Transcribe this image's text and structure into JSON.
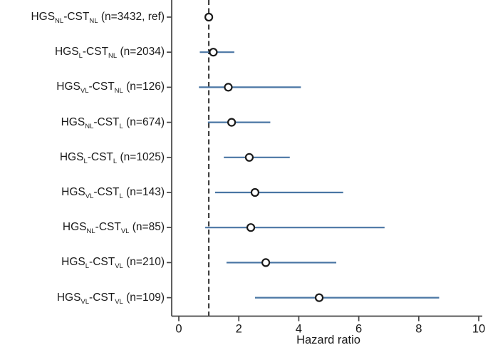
{
  "figure": {
    "background": "#ffffff"
  },
  "chart_data": {
    "type": "scatter",
    "subtype": "forest-plot",
    "title": "",
    "xlabel": "Hazard ratio",
    "ylabel": "",
    "xlim": [
      0,
      10
    ],
    "x_ticks": [
      0,
      2,
      4,
      6,
      8,
      10
    ],
    "reference_line_x": 1,
    "grid": false,
    "legend": "none",
    "colors": {
      "ci_line": "#4a76a4",
      "marker_fill": "#ffffff",
      "marker_stroke": "#1a1a1a",
      "axis": "#454545",
      "reference_line": "#1a1a1a",
      "text": "#1a1a1a"
    },
    "rows": [
      {
        "label_text": "HGS(NL)-CST(NL) (n=3432, ref)",
        "label": [
          {
            "t": "HGS"
          },
          {
            "t": "NL",
            "sub": true
          },
          {
            "t": "-CST"
          },
          {
            "t": "NL",
            "sub": true
          },
          {
            "t": " (n=3432, ref)"
          }
        ],
        "n": 3432,
        "hr": 1.0,
        "lo": null,
        "hi": null,
        "reference": true
      },
      {
        "label_text": "HGS(L)-CST(NL) (n=2034)",
        "label": [
          {
            "t": "HGS"
          },
          {
            "t": "L",
            "sub": true
          },
          {
            "t": "-CST"
          },
          {
            "t": "NL",
            "sub": true
          },
          {
            "t": " (n=2034)"
          }
        ],
        "n": 2034,
        "hr": 1.15,
        "lo": 0.7,
        "hi": 1.85,
        "reference": false
      },
      {
        "label_text": "HGS(VL)-CST(NL) (n=126)",
        "label": [
          {
            "t": "HGS"
          },
          {
            "t": "VL",
            "sub": true
          },
          {
            "t": "-CST"
          },
          {
            "t": "NL",
            "sub": true
          },
          {
            "t": " (n=126)"
          }
        ],
        "n": 126,
        "hr": 1.65,
        "lo": 0.67,
        "hi": 4.07,
        "reference": false
      },
      {
        "label_text": "HGS(NL)-CST(L) (n=674)",
        "label": [
          {
            "t": "HGS"
          },
          {
            "t": "NL",
            "sub": true
          },
          {
            "t": "-CST"
          },
          {
            "t": "L",
            "sub": true
          },
          {
            "t": " (n=674)"
          }
        ],
        "n": 674,
        "hr": 1.76,
        "lo": 0.97,
        "hi": 3.05,
        "reference": false
      },
      {
        "label_text": "HGS(L)-CST(L) (n=1025)",
        "label": [
          {
            "t": "HGS"
          },
          {
            "t": "L",
            "sub": true
          },
          {
            "t": "-CST"
          },
          {
            "t": "L",
            "sub": true
          },
          {
            "t": " (n=1025)"
          }
        ],
        "n": 1025,
        "hr": 2.35,
        "lo": 1.5,
        "hi": 3.7,
        "reference": false
      },
      {
        "label_text": "HGS(VL)-CST(L) (n=143)",
        "label": [
          {
            "t": "HGS"
          },
          {
            "t": "VL",
            "sub": true
          },
          {
            "t": "-CST"
          },
          {
            "t": "L",
            "sub": true
          },
          {
            "t": " (n=143)"
          }
        ],
        "n": 143,
        "hr": 2.54,
        "lo": 1.21,
        "hi": 5.48,
        "reference": false
      },
      {
        "label_text": "HGS(NL)-CST(VL) (n=85)",
        "label": [
          {
            "t": "HGS"
          },
          {
            "t": "NL",
            "sub": true
          },
          {
            "t": "-CST"
          },
          {
            "t": "VL",
            "sub": true
          },
          {
            "t": " (n=85)"
          }
        ],
        "n": 85,
        "hr": 2.4,
        "lo": 0.88,
        "hi": 6.86,
        "reference": false
      },
      {
        "label_text": "HGS(L)-CST(VL) (n=210)",
        "label": [
          {
            "t": "HGS"
          },
          {
            "t": "L",
            "sub": true
          },
          {
            "t": "-CST"
          },
          {
            "t": "VL",
            "sub": true
          },
          {
            "t": " (n=210)"
          }
        ],
        "n": 210,
        "hr": 2.9,
        "lo": 1.59,
        "hi": 5.25,
        "reference": false
      },
      {
        "label_text": "HGS(VL)-CST(VL) (n=109)",
        "label": [
          {
            "t": "HGS"
          },
          {
            "t": "VL",
            "sub": true
          },
          {
            "t": "-CST"
          },
          {
            "t": "VL",
            "sub": true
          },
          {
            "t": " (n=109)"
          }
        ],
        "n": 109,
        "hr": 4.68,
        "lo": 2.54,
        "hi": 8.68,
        "reference": false
      }
    ]
  }
}
